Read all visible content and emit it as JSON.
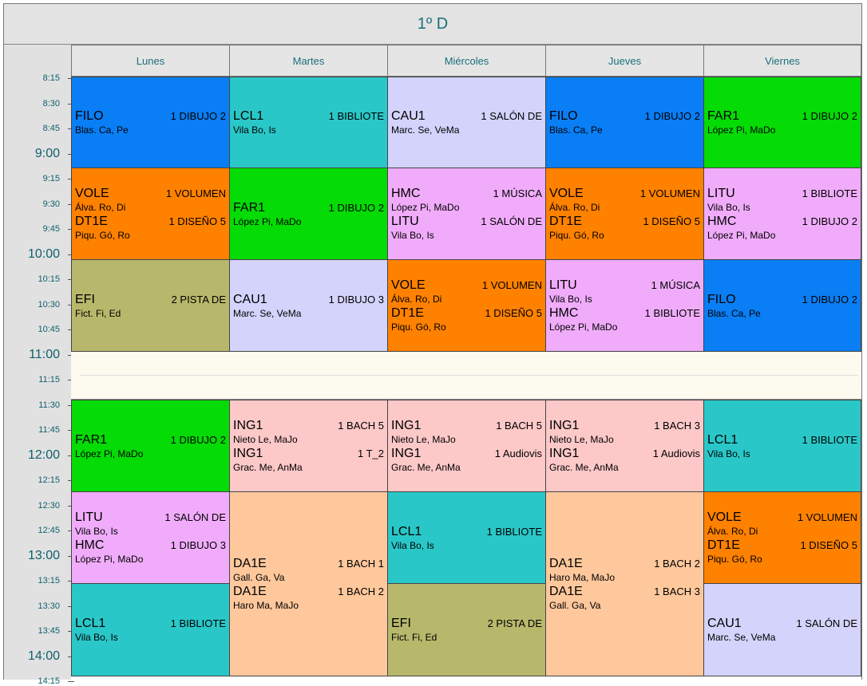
{
  "title": "1º D",
  "days": [
    "Lunes",
    "Martes",
    "Miércoles",
    "Jueves",
    "Viernes"
  ],
  "times": [
    "8:15",
    "8:30",
    "8:45",
    "9:00",
    "9:15",
    "9:30",
    "9:45",
    "10:00",
    "10:15",
    "10:30",
    "10:45",
    "11:00",
    "11:15",
    "11:30",
    "11:45",
    "12:00",
    "12:15",
    "12:30",
    "12:45",
    "13:00",
    "13:15",
    "13:30",
    "13:45",
    "14:00",
    "14:15"
  ],
  "colors": {
    "blue": "#0a7ef4",
    "teal": "#2ac7c8",
    "lavender": "#d3d3fb",
    "green": "#05db05",
    "orange": "#ff8100",
    "pink": "#f0acfa",
    "olive": "#b8b86c",
    "rose": "#fdc8c8",
    "peach": "#fec89c",
    "title_text": "#1a6f7a"
  },
  "cells": [
    {
      "color": "blue",
      "entries": [
        {
          "subject": "FILO",
          "room": "1 DIBUJO 2",
          "teacher": "Blas. Ca, Pe"
        }
      ]
    },
    {
      "color": "orange",
      "entries": [
        {
          "subject": "VOLE",
          "room": "1 VOLUMEN",
          "teacher": "Álva. Ro, Di"
        },
        {
          "subject": "DT1E",
          "room": "1 DISEÑO 5",
          "teacher": "Piqu. Gó, Ro"
        }
      ]
    },
    {
      "color": "olive",
      "entries": [
        {
          "subject": "EFI",
          "room": "2 PISTA DE",
          "teacher": "Fict. Fi, Ed"
        }
      ]
    },
    {
      "color": "green",
      "entries": [
        {
          "subject": "FAR1",
          "room": "1 DIBUJO 2",
          "teacher": "López Pi, MaDo"
        }
      ]
    },
    {
      "color": "pink",
      "entries": [
        {
          "subject": "LITU",
          "room": "1 SALÓN DE",
          "teacher": "Vila Bo, Is"
        },
        {
          "subject": "HMC",
          "room": "1 DIBUJO 3",
          "teacher": "López Pi, MaDo"
        }
      ]
    },
    {
      "color": "teal",
      "entries": [
        {
          "subject": "LCL1",
          "room": "1 BIBLIOTE",
          "teacher": "Vila Bo, Is"
        }
      ]
    },
    {
      "color": "teal",
      "entries": [
        {
          "subject": "LCL1",
          "room": "1 BIBLIOTE",
          "teacher": "Vila Bo, Is"
        }
      ]
    },
    {
      "color": "green",
      "entries": [
        {
          "subject": "FAR1",
          "room": "1 DIBUJO 2",
          "teacher": "López Pi, MaDo"
        }
      ]
    },
    {
      "color": "lavender",
      "entries": [
        {
          "subject": "CAU1",
          "room": "1 DIBUJO 3",
          "teacher": "Marc. Se, VeMa"
        }
      ]
    },
    {
      "color": "rose",
      "entries": [
        {
          "subject": "ING1",
          "room": "1 BACH 5",
          "teacher": "Nieto Le, MaJo"
        },
        {
          "subject": "ING1",
          "room": "1 T_2",
          "teacher": "Grac. Me, AnMa"
        }
      ]
    },
    {
      "color": "peach",
      "entries": [
        {
          "subject": "DA1E",
          "room": "1 BACH 1",
          "teacher": "Gall. Ga, Va"
        },
        {
          "subject": "DA1E",
          "room": "1 BACH 2",
          "teacher": "Haro Ma, MaJo"
        }
      ]
    },
    {
      "color": "lavender",
      "entries": [
        {
          "subject": "CAU1",
          "room": "1 SALÓN DE",
          "teacher": "Marc. Se, VeMa"
        }
      ]
    },
    {
      "color": "pink",
      "entries": [
        {
          "subject": "HMC",
          "room": "1 MÚSICA",
          "teacher": "López Pi, MaDo"
        },
        {
          "subject": "LITU",
          "room": "1 SALÓN DE",
          "teacher": "Vila Bo, Is"
        }
      ]
    },
    {
      "color": "orange",
      "entries": [
        {
          "subject": "VOLE",
          "room": "1 VOLUMEN",
          "teacher": "Álva. Ro, Di"
        },
        {
          "subject": "DT1E",
          "room": "1 DISEÑO 5",
          "teacher": "Piqu. Gó, Ro"
        }
      ]
    },
    {
      "color": "rose",
      "entries": [
        {
          "subject": "ING1",
          "room": "1 BACH 5",
          "teacher": "Nieto Le, MaJo"
        },
        {
          "subject": "ING1",
          "room": "1 Audiovis",
          "teacher": "Grac. Me, AnMa"
        }
      ]
    },
    {
      "color": "teal",
      "entries": [
        {
          "subject": "LCL1",
          "room": "1 BIBLIOTE",
          "teacher": "Vila Bo, Is"
        }
      ]
    },
    {
      "color": "olive",
      "entries": [
        {
          "subject": "EFI",
          "room": "2 PISTA DE",
          "teacher": "Fict. Fi, Ed"
        }
      ]
    },
    {
      "color": "blue",
      "entries": [
        {
          "subject": "FILO",
          "room": "1 DIBUJO 2",
          "teacher": "Blas. Ca, Pe"
        }
      ]
    },
    {
      "color": "orange",
      "entries": [
        {
          "subject": "VOLE",
          "room": "1 VOLUMEN",
          "teacher": "Álva. Ro, Di"
        },
        {
          "subject": "DT1E",
          "room": "1 DISEÑO 5",
          "teacher": "Piqu. Gó, Ro"
        }
      ]
    },
    {
      "color": "pink",
      "entries": [
        {
          "subject": "LITU",
          "room": "1 MÚSICA",
          "teacher": "Vila Bo, Is"
        },
        {
          "subject": "HMC",
          "room": "1 BIBLIOTE",
          "teacher": "López Pi, MaDo"
        }
      ]
    },
    {
      "color": "rose",
      "entries": [
        {
          "subject": "ING1",
          "room": "1 BACH 3",
          "teacher": "Nieto Le, MaJo"
        },
        {
          "subject": "ING1",
          "room": "1 Audiovis",
          "teacher": "Grac. Me, AnMa"
        }
      ]
    },
    {
      "color": "peach",
      "entries": [
        {
          "subject": "DA1E",
          "room": "1 BACH 2",
          "teacher": "Haro Ma, MaJo"
        },
        {
          "subject": "DA1E",
          "room": "1 BACH 3",
          "teacher": "Gall. Ga, Va"
        }
      ]
    },
    {
      "color": "green",
      "entries": [
        {
          "subject": "FAR1",
          "room": "1 DIBUJO 2",
          "teacher": "López Pi, MaDo"
        }
      ]
    },
    {
      "color": "pink",
      "entries": [
        {
          "subject": "LITU",
          "room": "1 BIBLIOTE",
          "teacher": "Vila Bo, Is"
        },
        {
          "subject": "HMC",
          "room": "1 DIBUJO 2",
          "teacher": "López Pi, MaDo"
        }
      ]
    },
    {
      "color": "blue",
      "entries": [
        {
          "subject": "FILO",
          "room": "1 DIBUJO 2",
          "teacher": "Blas. Ca, Pe"
        }
      ]
    },
    {
      "color": "teal",
      "entries": [
        {
          "subject": "LCL1",
          "room": "1 BIBLIOTE",
          "teacher": "Vila Bo, Is"
        }
      ]
    },
    {
      "color": "orange",
      "entries": [
        {
          "subject": "VOLE",
          "room": "1 VOLUMEN",
          "teacher": "Álva. Ro, Di"
        },
        {
          "subject": "DT1E",
          "room": "1 DISEÑO 5",
          "teacher": "Piqu. Gó, Ro"
        }
      ]
    },
    {
      "color": "lavender",
      "entries": [
        {
          "subject": "CAU1",
          "room": "1 SALÓN DE",
          "teacher": "Marc. Se, VeMa"
        }
      ]
    }
  ]
}
